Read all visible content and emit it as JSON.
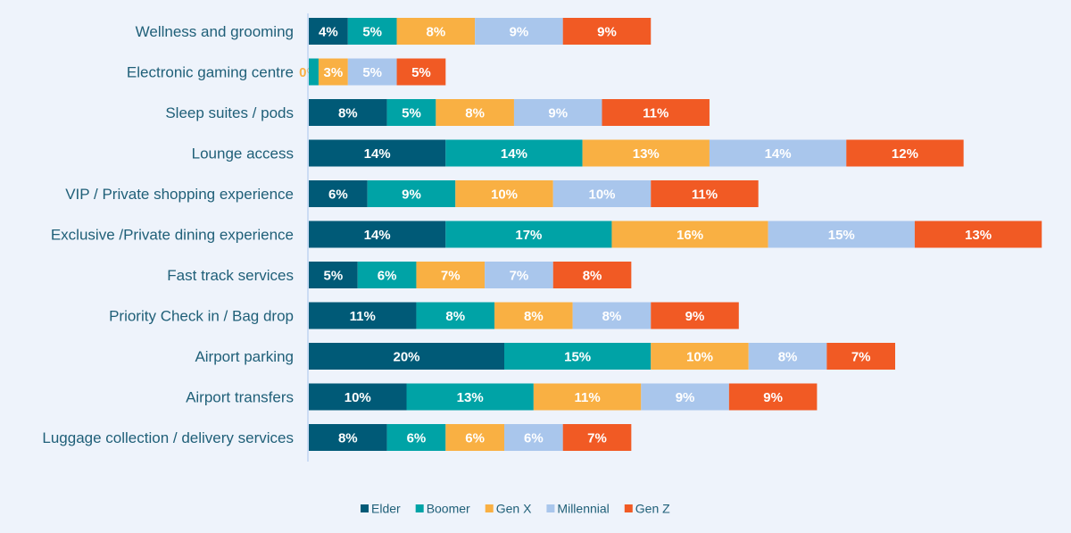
{
  "chart_data": {
    "type": "bar",
    "orientation": "horizontal",
    "stacked": true,
    "title": "",
    "xlabel": "",
    "ylabel": "",
    "legend_position": "bottom",
    "grid": false,
    "categories": [
      "Wellness and grooming",
      "Electronic gaming centre",
      "Sleep suites / pods",
      "Lounge access",
      "VIP / Private shopping experience",
      "Exclusive /Private dining experience",
      "Fast track services",
      "Priority Check in / Bag drop",
      "Airport parking",
      "Airport transfers",
      "Luggage collection / delivery services"
    ],
    "series": [
      {
        "name": "Elder",
        "color": "#005a77",
        "label_color": "#ffffff",
        "values": [
          4,
          0,
          8,
          14,
          6,
          14,
          5,
          11,
          20,
          10,
          8
        ]
      },
      {
        "name": "Boomer",
        "color": "#00a3a6",
        "label_color": "#ffffff",
        "values": [
          5,
          1,
          5,
          14,
          9,
          17,
          6,
          8,
          15,
          13,
          6
        ]
      },
      {
        "name": "Gen X",
        "color": "#f9b043",
        "label_color": "#ffffff",
        "values": [
          8,
          3,
          8,
          13,
          10,
          16,
          7,
          8,
          10,
          11,
          6
        ]
      },
      {
        "name": "Millennial",
        "color": "#a9c6ec",
        "label_color": "#ffffff",
        "values": [
          9,
          5,
          9,
          14,
          10,
          15,
          7,
          8,
          8,
          9,
          6
        ]
      },
      {
        "name": "Gen Z",
        "color": "#f15a24",
        "label_color": "#ffffff",
        "values": [
          9,
          5,
          11,
          12,
          11,
          13,
          8,
          9,
          7,
          9,
          7
        ]
      }
    ],
    "data_labels": [
      [
        "4%",
        "0%",
        "8%",
        "14%",
        "6%",
        "14%",
        "5%",
        "11%",
        "20%",
        "10%",
        "8%"
      ],
      [
        "5%",
        "",
        "5%",
        "14%",
        "9%",
        "17%",
        "6%",
        "8%",
        "15%",
        "13%",
        "6%"
      ],
      [
        "8%",
        "3%",
        "8%",
        "13%",
        "10%",
        "16%",
        "7%",
        "8%",
        "10%",
        "11%",
        "6%"
      ],
      [
        "9%",
        "5%",
        "9%",
        "14%",
        "10%",
        "15%",
        "7%",
        "8%",
        "8%",
        "9%",
        "6%"
      ],
      [
        "9%",
        "5%",
        "11%",
        "12%",
        "11%",
        "13%",
        "8%",
        "9%",
        "7%",
        "9%",
        "7%"
      ]
    ],
    "outside_label_color": "#f9b043",
    "category_label_color": "#1f5f78",
    "axis_line_color": "#a9c6ec"
  }
}
